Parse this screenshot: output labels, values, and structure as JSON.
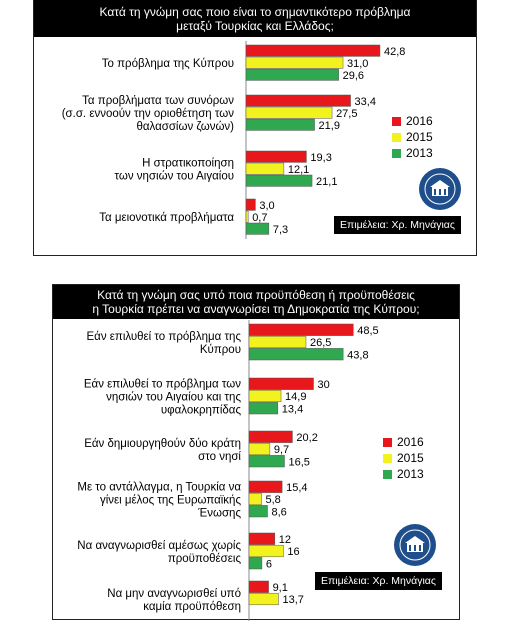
{
  "colors": {
    "2016": "#e8171c",
    "2015": "#f2f21f",
    "2013": "#2fa84f"
  },
  "credit": "Επιμέλεια: Χρ. Μηνάγιας",
  "seal_icon": "kadir-has-university-seal",
  "chart_data": [
    {
      "type": "bar",
      "orientation": "horizontal",
      "title": [
        "Κατά τη γνώμη σας ποιο είναι το σημαντικότερο πρόβλημα",
        "μεταξύ Τουρκίας και Ελλάδος;"
      ],
      "legend_position": "right",
      "categories": [
        [
          "Το πρόβλημα της Κύπρου"
        ],
        [
          "Τα προβλήματα των συνόρων",
          "(σ.σ. εννοούν την οριοθέτηση των",
          "θαλασσίων ζωνών)"
        ],
        [
          "Η στρατικοποίηση",
          "των νησιών του Αιγαίου"
        ],
        [
          "Τα μειονοτικά προβλήματα"
        ]
      ],
      "series": [
        {
          "name": "2016",
          "values": [
            42.8,
            33.4,
            19.3,
            3.0
          ],
          "labels": [
            "42,8",
            "33,4",
            "19,3",
            "3,0"
          ]
        },
        {
          "name": "2015",
          "values": [
            31.0,
            27.5,
            12.1,
            0.7
          ],
          "labels": [
            "31,0",
            "27,5",
            "12,1",
            "0,7"
          ]
        },
        {
          "name": "2013",
          "values": [
            29.6,
            21.9,
            21.1,
            7.3
          ],
          "labels": [
            "29,6",
            "21,9",
            "21,1",
            "7,3"
          ]
        }
      ]
    },
    {
      "type": "bar",
      "orientation": "horizontal",
      "title": [
        "Κατά τη γνώμη σας υπό ποια προϋπόθεση ή προϋποθέσεις",
        "η Τουρκία πρέπει να αναγνωρίσει τη Δημοκρατία της Κύπρου;"
      ],
      "legend_position": "right",
      "categories": [
        [
          "Εάν επιλυθεί το πρόβλημα της",
          "Κύπρου"
        ],
        [
          "Εάν επιλυθεί το πρόβλημα των",
          "νησιών του Αιγαίου και της",
          "υφαλοκρηπίδας"
        ],
        [
          "Εάν δημιουργηθούν δύο κράτη",
          "στο νησί"
        ],
        [
          "Με το αντάλλαγμα, η Τουρκία να",
          "γίνει μέλος της Ευρωπαϊκής",
          "Ένωσης"
        ],
        [
          "Να αναγνωρισθεί αμέσως χωρίς",
          "προϋποθέσεις"
        ],
        [
          "Να μην αναγνωρισθεί υπό",
          "καμία προϋπόθεση"
        ]
      ],
      "series": [
        {
          "name": "2016",
          "values": [
            48.5,
            30,
            20.2,
            15.4,
            12,
            9.1
          ],
          "labels": [
            "48,5",
            "30",
            "20,2",
            "15,4",
            "12",
            "9,1"
          ]
        },
        {
          "name": "2015",
          "values": [
            26.5,
            14.9,
            9.7,
            5.8,
            16,
            13.7
          ],
          "labels": [
            "26,5",
            "14,9",
            "9,7",
            "5,8",
            "16",
            "13,7"
          ]
        },
        {
          "name": "2013",
          "values": [
            43.8,
            13.4,
            16.5,
            8.6,
            6,
            null
          ],
          "labels": [
            "43,8",
            "13,4",
            "16,5",
            "8,6",
            "6",
            ""
          ]
        }
      ]
    }
  ]
}
